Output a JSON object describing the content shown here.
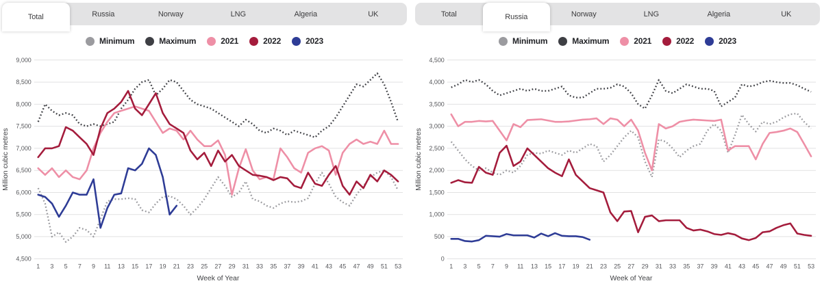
{
  "tab_labels": [
    "Total",
    "Russia",
    "Norway",
    "LNG",
    "Algeria",
    "UK"
  ],
  "panels": [
    {
      "name": "total-panel",
      "active_tab": "Total"
    },
    {
      "name": "russia-panel",
      "active_tab": "Russia"
    }
  ],
  "legend_items": [
    {
      "label": "Minimum",
      "color": "#9b9b9f",
      "style": "dotted"
    },
    {
      "label": "Maximum",
      "color": "#3e3f44",
      "style": "dotted"
    },
    {
      "label": "2021",
      "color": "#ee8fa6",
      "style": "solid"
    },
    {
      "label": "2022",
      "color": "#a41c3c",
      "style": "solid"
    },
    {
      "label": "2023",
      "color": "#2e3c96",
      "style": "solid"
    }
  ],
  "axes": {
    "xlabel": "Week of Year",
    "ylabel": "Million cubic metres",
    "xticks": [
      1,
      3,
      5,
      7,
      9,
      11,
      13,
      15,
      17,
      19,
      21,
      23,
      25,
      27,
      29,
      31,
      33,
      35,
      37,
      39,
      41,
      43,
      45,
      47,
      49,
      51,
      53
    ]
  },
  "chart_data": [
    {
      "type": "line",
      "title": "Total",
      "x_weeks": 53,
      "ylim": [
        4500,
        9000
      ],
      "ytick_step": 500,
      "grid": true,
      "legend_position": "top",
      "series": [
        {
          "name": "Minimum",
          "style": "dotted",
          "values": [
            6100,
            5750,
            5000,
            5100,
            4880,
            5000,
            5200,
            5150,
            5000,
            5400,
            5800,
            5850,
            5850,
            5870,
            5850,
            5600,
            5550,
            5750,
            5900,
            5920,
            5850,
            5700,
            5500,
            5650,
            5850,
            6100,
            6350,
            6150,
            5900,
            6000,
            6250,
            5850,
            5800,
            5700,
            5650,
            5750,
            5800,
            5780,
            5800,
            5870,
            6200,
            6450,
            6200,
            5900,
            5780,
            5700,
            5950,
            6150,
            6350,
            6450,
            6500,
            6350,
            6050
          ]
        },
        {
          "name": "Maximum",
          "style": "dotted",
          "values": [
            7600,
            8000,
            7850,
            7750,
            7800,
            7750,
            7550,
            7500,
            7550,
            7500,
            7550,
            7600,
            7900,
            8100,
            8350,
            8500,
            8550,
            8200,
            8350,
            8550,
            8500,
            8300,
            8100,
            8000,
            7950,
            7900,
            7800,
            7700,
            7600,
            7500,
            7650,
            7550,
            7400,
            7350,
            7450,
            7400,
            7300,
            7400,
            7350,
            7300,
            7250,
            7400,
            7500,
            7700,
            7950,
            8200,
            8450,
            8400,
            8550,
            8700,
            8450,
            8050,
            7600
          ]
        },
        {
          "name": "2021",
          "style": "solid",
          "values": [
            6550,
            6400,
            6550,
            6350,
            6500,
            6350,
            6300,
            6500,
            7000,
            7350,
            7600,
            7800,
            7850,
            7900,
            7950,
            7900,
            7850,
            7600,
            7350,
            7450,
            7400,
            7200,
            7400,
            7200,
            7050,
            7050,
            7180,
            6850,
            5950,
            6550,
            6980,
            6500,
            6300,
            6350,
            6300,
            7000,
            6800,
            6550,
            6450,
            6900,
            7000,
            7050,
            6950,
            6400,
            6900,
            7100,
            7200,
            7100,
            7150,
            7100,
            7400,
            7100,
            7100
          ]
        },
        {
          "name": "2022",
          "style": "solid",
          "values": [
            6800,
            7000,
            7000,
            7050,
            7480,
            7400,
            7250,
            7100,
            6850,
            7450,
            7800,
            7900,
            8050,
            8300,
            7900,
            7750,
            8000,
            8250,
            7800,
            7550,
            7450,
            7350,
            6950,
            6750,
            6900,
            6600,
            6950,
            6700,
            6850,
            6600,
            6500,
            6400,
            6380,
            6350,
            6280,
            6350,
            6320,
            6150,
            6100,
            6450,
            6200,
            6150,
            6400,
            6600,
            6150,
            5950,
            6250,
            6100,
            6400,
            6250,
            6500,
            6400,
            6250
          ]
        },
        {
          "name": "2023",
          "style": "solid",
          "values": [
            5950,
            5900,
            5750,
            5450,
            5700,
            6000,
            5950,
            5950,
            6300,
            5200,
            5650,
            5950,
            5980,
            6550,
            6500,
            6650,
            7000,
            6850,
            6350,
            5500,
            5700
          ]
        }
      ]
    },
    {
      "type": "line",
      "title": "Russia",
      "x_weeks": 53,
      "ylim": [
        0,
        4500
      ],
      "ytick_step": 500,
      "grid": true,
      "legend_position": "top",
      "series": [
        {
          "name": "Minimum",
          "style": "dotted",
          "values": [
            2650,
            2450,
            2250,
            2100,
            2000,
            2050,
            1950,
            1900,
            2000,
            1950,
            2100,
            2350,
            2400,
            2380,
            2450,
            2400,
            2350,
            2450,
            2400,
            2500,
            2600,
            2550,
            2200,
            2350,
            2550,
            2750,
            2900,
            2750,
            2200,
            1850,
            2700,
            2650,
            2500,
            2300,
            2450,
            2550,
            2600,
            2900,
            3050,
            2900,
            2400,
            2800,
            3260,
            3050,
            2880,
            3100,
            3050,
            3100,
            3200,
            3270,
            3290,
            3100,
            2950
          ]
        },
        {
          "name": "Maximum",
          "style": "dotted",
          "values": [
            3880,
            3950,
            4050,
            4000,
            4050,
            3950,
            3800,
            3700,
            3750,
            3800,
            3850,
            3800,
            3850,
            3800,
            3800,
            3850,
            3900,
            3700,
            3650,
            3650,
            3750,
            3850,
            3850,
            3870,
            3950,
            3900,
            3750,
            3500,
            3400,
            3700,
            4050,
            3800,
            3750,
            3850,
            3950,
            3900,
            3850,
            3850,
            3800,
            3450,
            3550,
            3650,
            3950,
            3900,
            3930,
            4000,
            4030,
            4000,
            3980,
            3980,
            3930,
            3850,
            3780
          ]
        },
        {
          "name": "2021",
          "style": "solid",
          "values": [
            3270,
            3000,
            3100,
            3100,
            3120,
            3110,
            3120,
            2900,
            2680,
            3050,
            2980,
            3140,
            3150,
            3160,
            3130,
            3100,
            3100,
            3110,
            3130,
            3150,
            3160,
            3180,
            3050,
            3180,
            3150,
            3000,
            3150,
            2900,
            2400,
            2000,
            3050,
            2950,
            3000,
            3100,
            3130,
            3150,
            3140,
            3130,
            3120,
            3150,
            2450,
            2550,
            2550,
            2550,
            2250,
            2600,
            2850,
            2870,
            2900,
            2950,
            2870,
            2600,
            2320
          ]
        },
        {
          "name": "2022",
          "style": "solid",
          "values": [
            1720,
            1780,
            1730,
            1720,
            2080,
            1950,
            1900,
            2400,
            2560,
            2100,
            2200,
            2500,
            2350,
            2200,
            2050,
            1950,
            1870,
            2250,
            1900,
            1750,
            1600,
            1550,
            1500,
            1050,
            850,
            1070,
            1080,
            600,
            950,
            980,
            850,
            870,
            870,
            870,
            700,
            640,
            660,
            620,
            560,
            540,
            580,
            545,
            460,
            420,
            470,
            600,
            620,
            700,
            760,
            800,
            570,
            540,
            520
          ]
        },
        {
          "name": "2023",
          "style": "solid",
          "values": [
            450,
            450,
            400,
            390,
            420,
            520,
            510,
            500,
            560,
            530,
            530,
            530,
            480,
            570,
            510,
            580,
            520,
            510,
            510,
            490,
            430
          ]
        }
      ]
    }
  ]
}
